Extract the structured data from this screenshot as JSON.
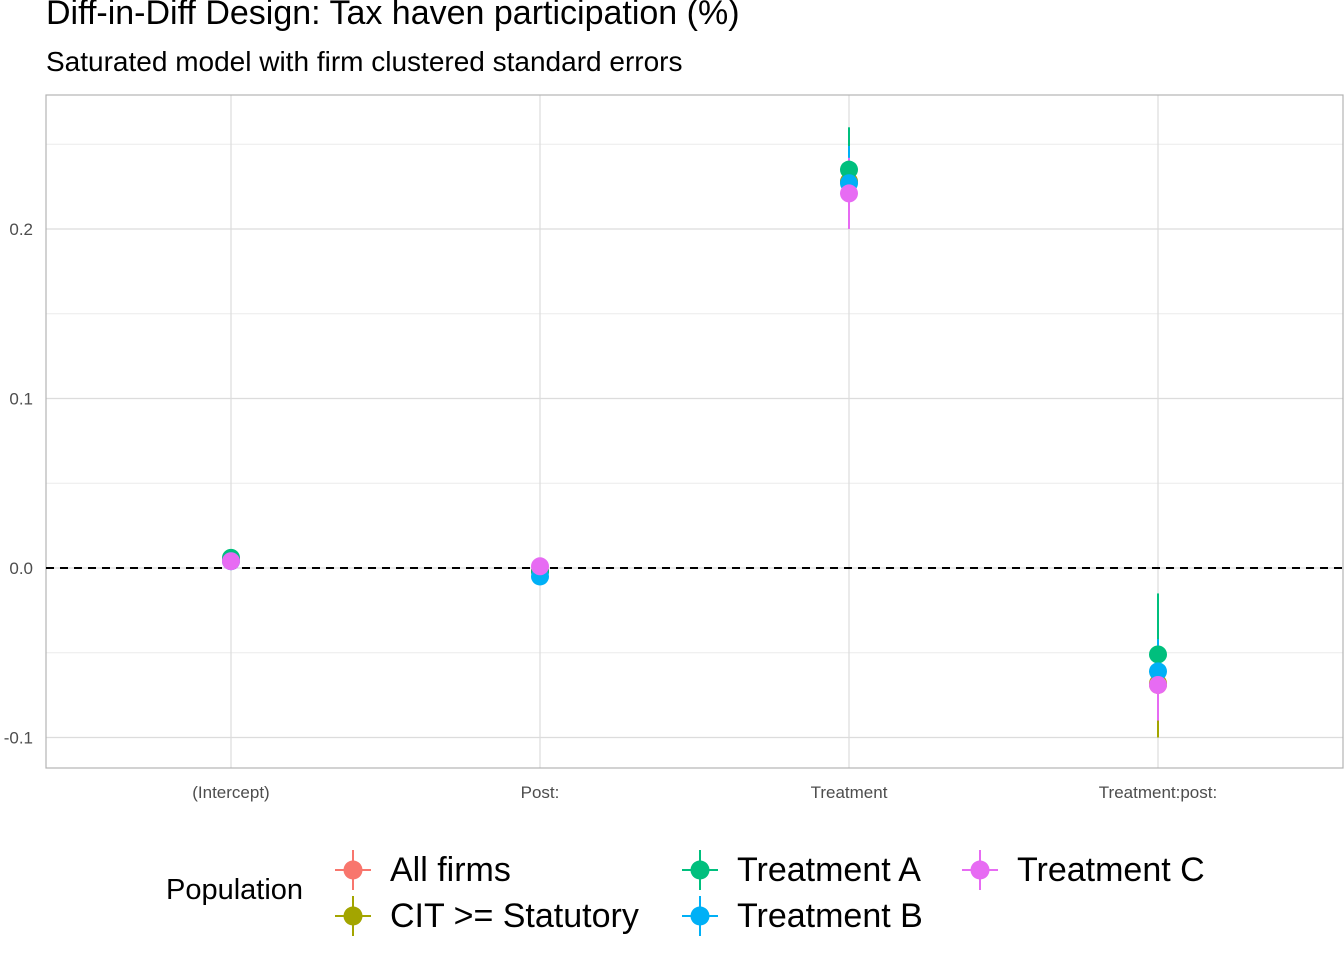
{
  "chart_data": {
    "type": "scatter",
    "title": "Diff-in-Diff Design: Tax haven participation (%)",
    "subtitle": "Saturated model with firm clustered standard errors",
    "xlabel": "",
    "ylabel": "",
    "categories": [
      "(Intercept)",
      "Post:",
      "Treatment",
      "Treatment:post:"
    ],
    "y_ticks": [
      -0.1,
      0.0,
      0.1,
      0.2
    ],
    "y_tick_labels": [
      "-0.1",
      "0.0",
      "0.1",
      "0.2"
    ],
    "ylim": [
      -0.118,
      0.278
    ],
    "reference_line": {
      "y": 0.0,
      "style": "dashed"
    },
    "grid": true,
    "legend": {
      "title": "Population",
      "position": "bottom"
    },
    "series": [
      {
        "name": "All firms",
        "color": "#F8766D",
        "values": [
          0.005,
          -0.002,
          0.228,
          -0.069
        ],
        "lower": [
          0.002,
          -0.005,
          0.204,
          -0.094
        ],
        "upper": [
          0.008,
          0.001,
          0.252,
          -0.044
        ]
      },
      {
        "name": "CIT >= Statutory",
        "color": "#A3A500",
        "values": [
          0.005,
          -0.002,
          0.228,
          -0.068
        ],
        "lower": [
          0.001,
          -0.006,
          0.2,
          -0.1
        ],
        "upper": [
          0.009,
          0.002,
          0.256,
          -0.036
        ]
      },
      {
        "name": "Treatment A",
        "color": "#00BF7D",
        "values": [
          0.006,
          -0.002,
          0.235,
          -0.051
        ],
        "lower": [
          0.002,
          -0.006,
          0.21,
          -0.087
        ],
        "upper": [
          0.01,
          0.002,
          0.26,
          -0.015
        ]
      },
      {
        "name": "Treatment B",
        "color": "#00B0F6",
        "values": [
          0.004,
          -0.005,
          0.227,
          -0.061
        ],
        "lower": [
          0.001,
          -0.008,
          0.205,
          -0.08
        ],
        "upper": [
          0.007,
          -0.002,
          0.249,
          -0.042
        ]
      },
      {
        "name": "Treatment C",
        "color": "#E76BF3",
        "values": [
          0.004,
          0.001,
          0.221,
          -0.069
        ],
        "lower": [
          0.001,
          -0.002,
          0.2,
          -0.09
        ],
        "upper": [
          0.007,
          0.004,
          0.242,
          -0.048
        ]
      }
    ]
  }
}
